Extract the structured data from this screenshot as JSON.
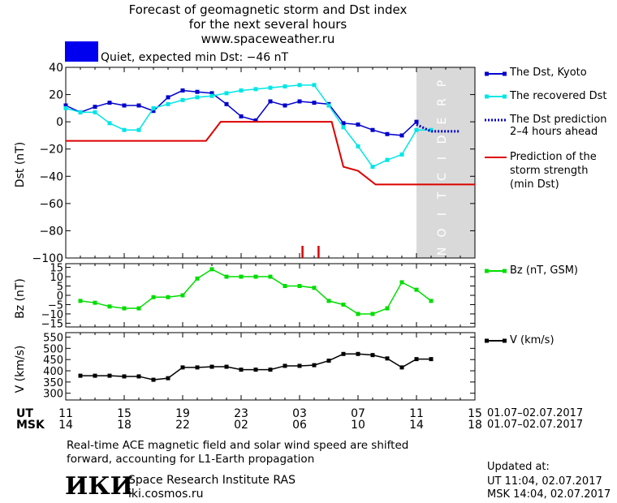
{
  "header": {
    "title_line1": "Forecast of geomagnetic storm and Dst index",
    "title_line2": "for the next several hours",
    "title_line3": "www.spaceweather.ru",
    "status_color": "#0000ee",
    "status_text": "Quiet, expected min Dst: −46 nT"
  },
  "legend": {
    "dst_kyoto": "The Dst, Kyoto",
    "dst_recovered": "The recovered Dst",
    "dst_prediction_1": "The Dst prediction",
    "dst_prediction_2": "2–4 hours ahead",
    "storm_1": "Prediction of the",
    "storm_2": "storm strength",
    "storm_3": "(min Dst)",
    "bz": "Bz (nT, GSM)",
    "v": "V (km/s)"
  },
  "axes": {
    "dst_ylabel": "Dst (nT)",
    "bz_ylabel": "Bz (nT)",
    "v_ylabel": "V (km/s)",
    "prediction_label": "PREDICTION",
    "ut_label": "UT",
    "msk_label": "MSK",
    "ut_ticks": [
      "11",
      "15",
      "19",
      "23",
      "03",
      "07",
      "11",
      "15"
    ],
    "msk_ticks": [
      "14",
      "18",
      "22",
      "02",
      "06",
      "10",
      "14",
      "18"
    ],
    "date_range_ut": "01.07–02.07.2017",
    "date_range_msk": "01.07–02.07.2017"
  },
  "footer": {
    "note_line1": "Real-time ACE magnetic field and solar wind speed are shifted",
    "note_line2": "forward, accounting for L1-Earth propagation",
    "logo_text": "ИКИ",
    "institute": "Space Research Institute RAS",
    "site": "iki.cosmos.ru",
    "updated_label": "Updated at:",
    "updated_ut": "UT   11:04, 02.07.2017",
    "updated_msk": "MSK 14:04, 02.07.2017"
  },
  "chart_data": [
    {
      "type": "line",
      "x_unit": "hours since 01.07.2017 11:00 UT",
      "xlim": [
        0,
        28
      ],
      "ylim": [
        -100,
        40
      ],
      "yticks": [
        40,
        20,
        0,
        -20,
        -40,
        -60,
        -80,
        -100
      ],
      "prediction_band_x": [
        24,
        28
      ],
      "series": [
        {
          "name": "The Dst, Kyoto",
          "color": "#0000cc",
          "x": [
            0,
            1,
            2,
            3,
            4,
            5,
            6,
            7,
            8,
            9,
            10,
            11,
            12,
            13,
            14,
            15,
            16,
            17,
            18,
            19,
            20,
            21,
            22,
            23,
            24
          ],
          "values": [
            12,
            7,
            11,
            14,
            12,
            12,
            8,
            18,
            23,
            22,
            21,
            13,
            4,
            1,
            15,
            12,
            15,
            14,
            13,
            -1,
            -2,
            -6,
            -9,
            -10,
            0
          ]
        },
        {
          "name": "The recovered Dst",
          "color": "#00e6e6",
          "x": [
            0,
            1,
            2,
            3,
            4,
            5,
            6,
            7,
            8,
            9,
            10,
            11,
            12,
            13,
            14,
            15,
            16,
            17,
            18,
            19,
            20,
            21,
            22,
            23,
            24,
            25
          ],
          "values": [
            10,
            7,
            7,
            -1,
            -6,
            -6,
            10,
            13,
            16,
            18,
            19,
            21,
            23,
            24,
            25,
            26,
            27,
            27,
            12,
            -4,
            -18,
            -33,
            -28,
            -24,
            -6,
            -6
          ]
        },
        {
          "name": "The Dst prediction 2–4 hours ahead",
          "color": "#0000cc",
          "dashed": true,
          "x": [
            24,
            25,
            26,
            27
          ],
          "values": [
            -2,
            -7,
            -7,
            -7
          ]
        },
        {
          "name": "Prediction of the storm strength (min Dst)",
          "color": "#dd0000",
          "step": true,
          "x": [
            0,
            9.6,
            10.6,
            18.2,
            19.0,
            20.0,
            21.2,
            28
          ],
          "values": [
            -14,
            -14,
            0,
            0,
            -33,
            -36,
            -46,
            -46
          ]
        }
      ],
      "markers_red_x": [
        16.2,
        17.3
      ]
    },
    {
      "type": "line",
      "ylim": [
        -17,
        17
      ],
      "yticks": [
        15,
        10,
        5,
        0,
        -5,
        -10,
        -15
      ],
      "series": [
        {
          "name": "Bz (nT, GSM)",
          "color": "#00dd00",
          "x": [
            1,
            2,
            3,
            4,
            5,
            6,
            7,
            8,
            9,
            10,
            11,
            12,
            13,
            14,
            15,
            16,
            17,
            18,
            19,
            20,
            21,
            22,
            23,
            24,
            25
          ],
          "values": [
            -3,
            -4,
            -6,
            -7,
            -7,
            -1,
            -1,
            0,
            9,
            14,
            10,
            10,
            10,
            10,
            5,
            5,
            4,
            -3,
            -5,
            -10,
            -10,
            -7,
            7,
            3,
            -3
          ]
        }
      ]
    },
    {
      "type": "line",
      "ylim": [
        270,
        570
      ],
      "yticks": [
        550,
        500,
        450,
        400,
        350,
        300
      ],
      "series": [
        {
          "name": "V (km/s)",
          "color": "#000000",
          "x": [
            1,
            2,
            3,
            4,
            5,
            6,
            7,
            8,
            9,
            10,
            11,
            12,
            13,
            14,
            15,
            16,
            17,
            18,
            19,
            20,
            21,
            22,
            23,
            24,
            25
          ],
          "values": [
            378,
            378,
            378,
            375,
            375,
            360,
            367,
            415,
            415,
            418,
            418,
            405,
            405,
            405,
            422,
            422,
            425,
            445,
            475,
            475,
            470,
            455,
            415,
            452,
            452
          ]
        }
      ]
    }
  ]
}
